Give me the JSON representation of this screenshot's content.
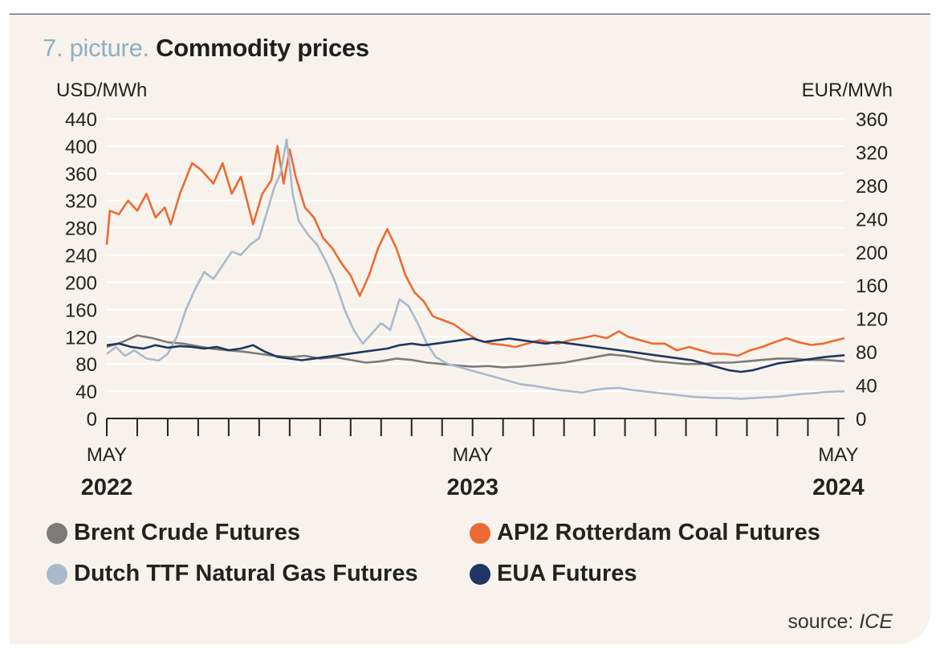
{
  "title": {
    "prefix": "7. picture.",
    "main": "Commodity prices"
  },
  "source": {
    "label": "source:",
    "name": "ICE"
  },
  "colors": {
    "brent": "#7d7b78",
    "coal": "#ec6a33",
    "ttf": "#a9b9cc",
    "eua": "#1f3563",
    "grid": "#ffffff",
    "axis": "#222222"
  },
  "chart_data": {
    "type": "line",
    "x_unit": "months since May 2022",
    "xlim": [
      0,
      24.2
    ],
    "x_ticks": [
      {
        "month": "MAY",
        "year": "2022",
        "value": 0
      },
      {
        "month": "MAY",
        "year": "2023",
        "value": 12
      },
      {
        "month": "MAY",
        "year": "2024",
        "value": 24
      }
    ],
    "minor_tick_step": 1,
    "y_left": {
      "label": "USD/MWh",
      "lim": [
        0,
        440
      ],
      "ticks": [
        0,
        40,
        80,
        120,
        160,
        200,
        240,
        280,
        320,
        360,
        400,
        440
      ]
    },
    "y_right": {
      "label": "EUR/MWh",
      "lim": [
        0,
        360
      ],
      "ticks": [
        0,
        40,
        80,
        120,
        160,
        200,
        240,
        280,
        320,
        360
      ]
    },
    "grid": "horizontal",
    "legend_position": "bottom",
    "series": [
      {
        "key": "brent",
        "name": "Brent Crude Futures",
        "axis": "left",
        "color": "#7d7b78",
        "points": [
          [
            0,
            105
          ],
          [
            0.5,
            112
          ],
          [
            1,
            122
          ],
          [
            1.5,
            118
          ],
          [
            2,
            112
          ],
          [
            2.5,
            110
          ],
          [
            3,
            106
          ],
          [
            3.5,
            102
          ],
          [
            4,
            100
          ],
          [
            4.5,
            98
          ],
          [
            5,
            95
          ],
          [
            5.5,
            92
          ],
          [
            6,
            90
          ],
          [
            6.5,
            92
          ],
          [
            7,
            88
          ],
          [
            7.5,
            90
          ],
          [
            8,
            86
          ],
          [
            8.5,
            82
          ],
          [
            9,
            84
          ],
          [
            9.5,
            88
          ],
          [
            10,
            86
          ],
          [
            10.5,
            82
          ],
          [
            11,
            80
          ],
          [
            11.5,
            78
          ],
          [
            12,
            76
          ],
          [
            12.5,
            77
          ],
          [
            13,
            75
          ],
          [
            13.5,
            76
          ],
          [
            14,
            78
          ],
          [
            14.5,
            80
          ],
          [
            15,
            82
          ],
          [
            15.5,
            86
          ],
          [
            16,
            90
          ],
          [
            16.5,
            94
          ],
          [
            17,
            92
          ],
          [
            17.5,
            88
          ],
          [
            18,
            84
          ],
          [
            18.5,
            82
          ],
          [
            19,
            80
          ],
          [
            19.5,
            80
          ],
          [
            20,
            82
          ],
          [
            20.5,
            82
          ],
          [
            21,
            84
          ],
          [
            21.5,
            86
          ],
          [
            22,
            88
          ],
          [
            22.5,
            88
          ],
          [
            23,
            86
          ],
          [
            23.5,
            86
          ],
          [
            24.2,
            84
          ]
        ]
      },
      {
        "key": "coal",
        "name": "API2 Rotterdam Coal Futures",
        "axis": "left",
        "color": "#ec6a33",
        "points": [
          [
            0,
            255
          ],
          [
            0.1,
            305
          ],
          [
            0.4,
            300
          ],
          [
            0.7,
            320
          ],
          [
            1,
            305
          ],
          [
            1.3,
            330
          ],
          [
            1.6,
            295
          ],
          [
            1.9,
            310
          ],
          [
            2.1,
            285
          ],
          [
            2.4,
            330
          ],
          [
            2.8,
            375
          ],
          [
            3.1,
            365
          ],
          [
            3.5,
            345
          ],
          [
            3.8,
            375
          ],
          [
            4.1,
            330
          ],
          [
            4.4,
            355
          ],
          [
            4.8,
            285
          ],
          [
            5.1,
            330
          ],
          [
            5.4,
            350
          ],
          [
            5.6,
            400
          ],
          [
            5.8,
            345
          ],
          [
            6.0,
            395
          ],
          [
            6.2,
            355
          ],
          [
            6.5,
            310
          ],
          [
            6.8,
            295
          ],
          [
            7.1,
            265
          ],
          [
            7.4,
            250
          ],
          [
            7.7,
            228
          ],
          [
            8.0,
            210
          ],
          [
            8.3,
            180
          ],
          [
            8.6,
            210
          ],
          [
            8.9,
            250
          ],
          [
            9.2,
            278
          ],
          [
            9.5,
            250
          ],
          [
            9.8,
            210
          ],
          [
            10.1,
            185
          ],
          [
            10.4,
            172
          ],
          [
            10.7,
            150
          ],
          [
            11,
            145
          ],
          [
            11.4,
            138
          ],
          [
            11.8,
            125
          ],
          [
            12.2,
            115
          ],
          [
            12.6,
            110
          ],
          [
            13,
            108
          ],
          [
            13.4,
            105
          ],
          [
            13.8,
            110
          ],
          [
            14.2,
            115
          ],
          [
            14.5,
            112
          ],
          [
            14.8,
            110
          ],
          [
            15.2,
            115
          ],
          [
            15.6,
            118
          ],
          [
            16,
            122
          ],
          [
            16.4,
            118
          ],
          [
            16.8,
            128
          ],
          [
            17.1,
            120
          ],
          [
            17.5,
            115
          ],
          [
            17.9,
            110
          ],
          [
            18.3,
            110
          ],
          [
            18.7,
            100
          ],
          [
            19.1,
            105
          ],
          [
            19.5,
            100
          ],
          [
            19.9,
            95
          ],
          [
            20.3,
            95
          ],
          [
            20.7,
            92
          ],
          [
            21.1,
            100
          ],
          [
            21.5,
            105
          ],
          [
            21.9,
            112
          ],
          [
            22.3,
            118
          ],
          [
            22.7,
            112
          ],
          [
            23.1,
            108
          ],
          [
            23.5,
            110
          ],
          [
            24.2,
            118
          ]
        ]
      },
      {
        "key": "ttf",
        "name": "Dutch TTF Natural Gas Futures",
        "axis": "left",
        "color": "#a9b9cc",
        "points": [
          [
            0,
            95
          ],
          [
            0.3,
            105
          ],
          [
            0.6,
            92
          ],
          [
            0.9,
            100
          ],
          [
            1.3,
            88
          ],
          [
            1.7,
            85
          ],
          [
            2.0,
            95
          ],
          [
            2.3,
            120
          ],
          [
            2.6,
            160
          ],
          [
            2.9,
            190
          ],
          [
            3.2,
            215
          ],
          [
            3.5,
            205
          ],
          [
            3.8,
            225
          ],
          [
            4.1,
            245
          ],
          [
            4.4,
            240
          ],
          [
            4.7,
            255
          ],
          [
            5.0,
            265
          ],
          [
            5.3,
            310
          ],
          [
            5.5,
            340
          ],
          [
            5.7,
            360
          ],
          [
            5.9,
            410
          ],
          [
            6.1,
            330
          ],
          [
            6.3,
            290
          ],
          [
            6.6,
            270
          ],
          [
            6.9,
            255
          ],
          [
            7.2,
            230
          ],
          [
            7.5,
            200
          ],
          [
            7.8,
            160
          ],
          [
            8.1,
            130
          ],
          [
            8.4,
            110
          ],
          [
            8.7,
            125
          ],
          [
            9.0,
            140
          ],
          [
            9.3,
            130
          ],
          [
            9.6,
            175
          ],
          [
            9.9,
            165
          ],
          [
            10.2,
            140
          ],
          [
            10.5,
            110
          ],
          [
            10.8,
            90
          ],
          [
            11.2,
            80
          ],
          [
            11.6,
            75
          ],
          [
            12,
            70
          ],
          [
            12.4,
            65
          ],
          [
            12.8,
            60
          ],
          [
            13.2,
            55
          ],
          [
            13.6,
            50
          ],
          [
            14,
            48
          ],
          [
            14.4,
            45
          ],
          [
            14.8,
            42
          ],
          [
            15.2,
            40
          ],
          [
            15.6,
            38
          ],
          [
            16,
            42
          ],
          [
            16.4,
            44
          ],
          [
            16.8,
            45
          ],
          [
            17.2,
            42
          ],
          [
            17.6,
            40
          ],
          [
            18,
            38
          ],
          [
            18.4,
            36
          ],
          [
            18.8,
            34
          ],
          [
            19.2,
            32
          ],
          [
            19.6,
            31
          ],
          [
            20,
            30
          ],
          [
            20.4,
            30
          ],
          [
            20.8,
            29
          ],
          [
            21.2,
            30
          ],
          [
            21.6,
            31
          ],
          [
            22,
            32
          ],
          [
            22.4,
            34
          ],
          [
            22.8,
            36
          ],
          [
            23.2,
            37
          ],
          [
            23.6,
            39
          ],
          [
            24.2,
            40
          ]
        ]
      },
      {
        "key": "eua",
        "name": "EUA Futures",
        "axis": "right",
        "color": "#1f3563",
        "points": [
          [
            0,
            88
          ],
          [
            0.4,
            90
          ],
          [
            0.8,
            86
          ],
          [
            1.2,
            84
          ],
          [
            1.6,
            88
          ],
          [
            2.0,
            85
          ],
          [
            2.4,
            87
          ],
          [
            2.8,
            86
          ],
          [
            3.2,
            84
          ],
          [
            3.6,
            86
          ],
          [
            4.0,
            82
          ],
          [
            4.4,
            84
          ],
          [
            4.8,
            88
          ],
          [
            5.2,
            80
          ],
          [
            5.6,
            74
          ],
          [
            6.0,
            72
          ],
          [
            6.4,
            70
          ],
          [
            6.8,
            72
          ],
          [
            7.2,
            74
          ],
          [
            7.6,
            76
          ],
          [
            8.0,
            78
          ],
          [
            8.4,
            80
          ],
          [
            8.8,
            82
          ],
          [
            9.2,
            84
          ],
          [
            9.6,
            88
          ],
          [
            10.0,
            90
          ],
          [
            10.4,
            88
          ],
          [
            10.8,
            90
          ],
          [
            11.2,
            92
          ],
          [
            11.6,
            94
          ],
          [
            12,
            96
          ],
          [
            12.4,
            92
          ],
          [
            12.8,
            94
          ],
          [
            13.2,
            96
          ],
          [
            13.6,
            94
          ],
          [
            14,
            92
          ],
          [
            14.4,
            90
          ],
          [
            14.8,
            92
          ],
          [
            15.2,
            90
          ],
          [
            15.6,
            88
          ],
          [
            16,
            86
          ],
          [
            16.4,
            84
          ],
          [
            16.8,
            82
          ],
          [
            17.2,
            80
          ],
          [
            17.6,
            78
          ],
          [
            18,
            76
          ],
          [
            18.4,
            74
          ],
          [
            18.8,
            72
          ],
          [
            19.2,
            70
          ],
          [
            19.6,
            66
          ],
          [
            20,
            62
          ],
          [
            20.4,
            58
          ],
          [
            20.8,
            56
          ],
          [
            21.2,
            58
          ],
          [
            21.6,
            62
          ],
          [
            22,
            66
          ],
          [
            22.4,
            68
          ],
          [
            22.8,
            70
          ],
          [
            23.2,
            72
          ],
          [
            23.6,
            74
          ],
          [
            24.2,
            76
          ]
        ]
      }
    ]
  }
}
